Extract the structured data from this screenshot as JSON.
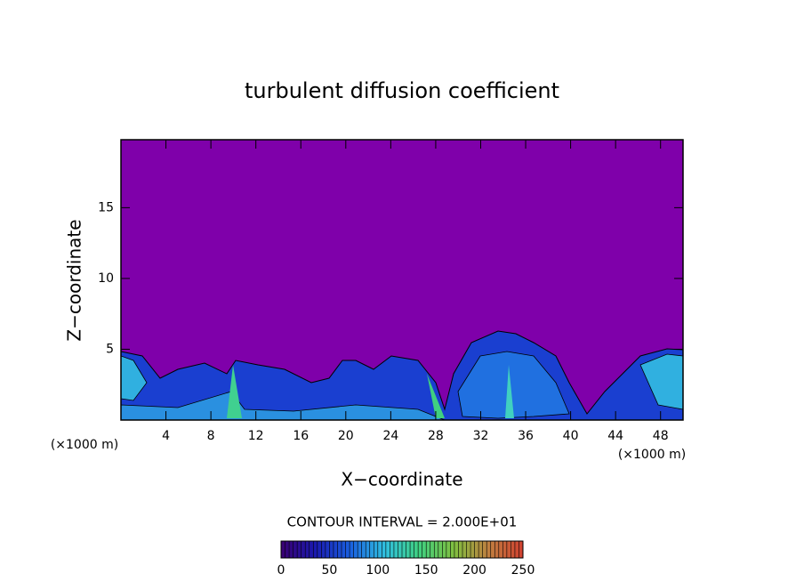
{
  "chart_data": {
    "type": "contour",
    "title": "turbulent diffusion coefficient",
    "x_label": "X−coordinate",
    "y_label": "Z−coordinate",
    "x_unit": "(×1000 m)",
    "y_unit": "(×1000 m)",
    "xlim": [
      0,
      50
    ],
    "xticks": [
      4,
      8,
      12,
      16,
      20,
      24,
      28,
      32,
      36,
      40,
      44,
      48
    ],
    "ylim": [
      0,
      19.8
    ],
    "yticks": [
      5,
      10,
      15
    ],
    "background_color": "#7f00aa",
    "annotation": "CONTOUR INTERVAL = 2.000E+01",
    "colorbar_lim": [
      0,
      250
    ],
    "colorbar_ticks": [
      0,
      50,
      100,
      150,
      200,
      250
    ],
    "colormap": [
      "#3a0070",
      "#1a1ab0",
      "#1a60e0",
      "#30c0e0",
      "#40d080",
      "#80c040",
      "#c08040",
      "#d04030"
    ]
  }
}
